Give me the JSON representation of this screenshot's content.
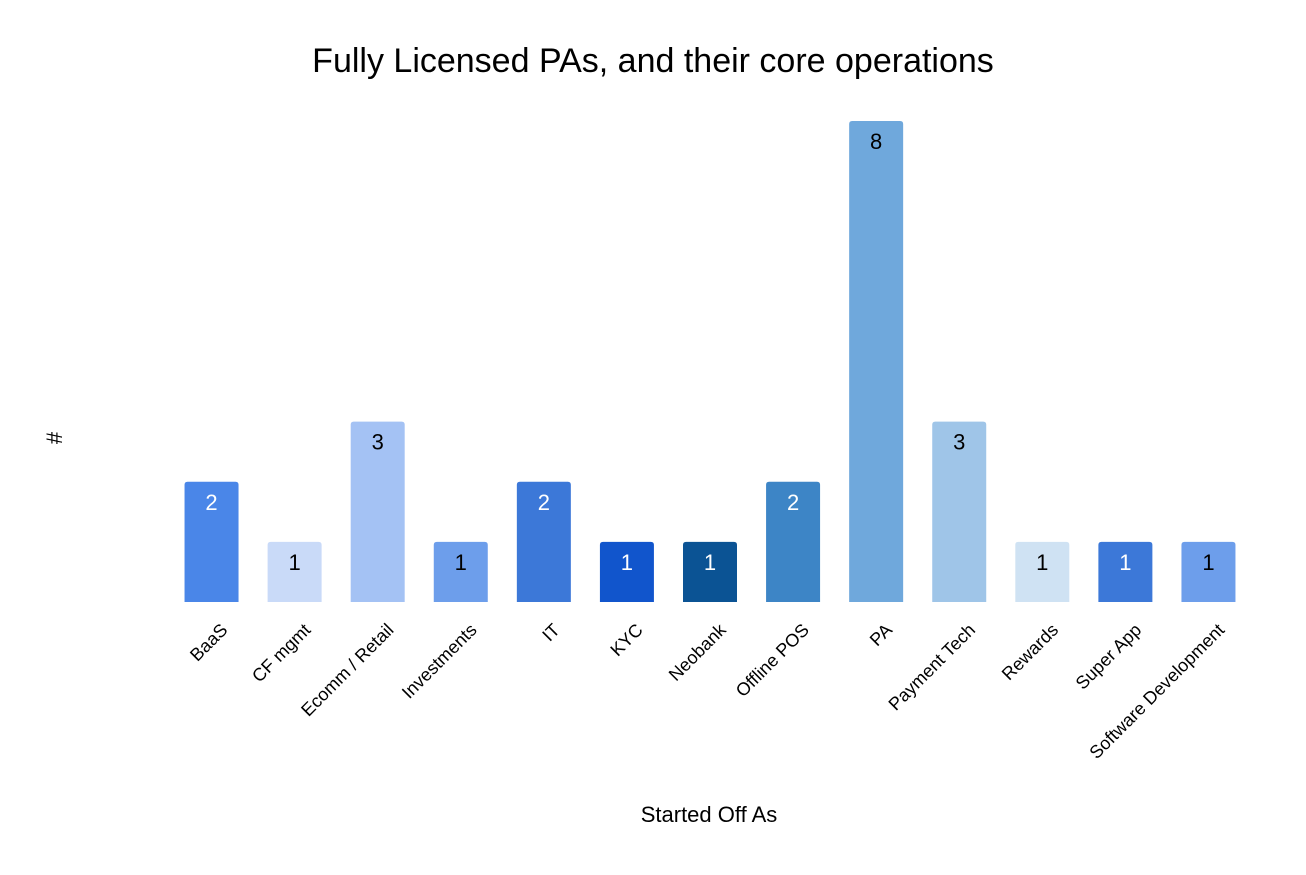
{
  "chart_data": {
    "type": "bar",
    "title": "Fully Licensed PAs, and their core operations",
    "xlabel": "Started Off As",
    "ylabel": "#",
    "categories": [
      "BaaS",
      "CF mgmt",
      "Ecomm / Retail",
      "Investments",
      "IT",
      "KYC",
      "Neobank",
      "Offline POS",
      "PA",
      "Payment Tech",
      "Rewards",
      "Super App",
      "Software Development"
    ],
    "values": [
      2,
      1,
      3,
      1,
      2,
      1,
      1,
      2,
      8,
      3,
      1,
      1,
      1
    ],
    "ylim": [
      0,
      8
    ],
    "grid": false,
    "legend": "none",
    "data_labels": true,
    "bar_colors": [
      "#4A86E8",
      "#C9DAF8",
      "#A4C2F4",
      "#6D9EEB",
      "#3C78D8",
      "#1155CC",
      "#0B5394",
      "#3D85C6",
      "#6FA8DC",
      "#9FC5E8",
      "#CFE2F3",
      "#3C78D8",
      "#6D9EEB"
    ],
    "label_colors": [
      "#ffffff",
      "#000000",
      "#000000",
      "#000000",
      "#ffffff",
      "#ffffff",
      "#ffffff",
      "#ffffff",
      "#000000",
      "#000000",
      "#000000",
      "#ffffff",
      "#000000"
    ]
  }
}
